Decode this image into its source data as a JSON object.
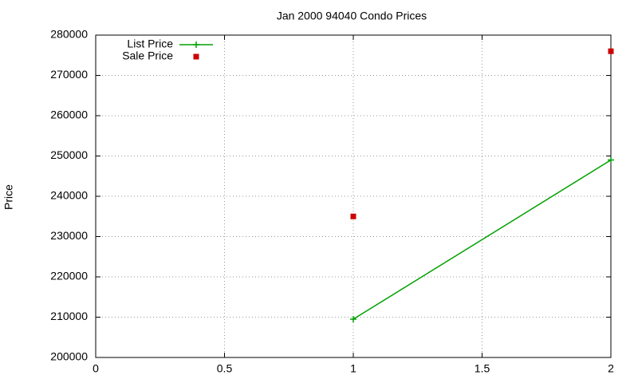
{
  "chart_data": {
    "type": "line",
    "title": "Jan 2000 94040 Condo Prices",
    "y_label": "Price",
    "x": [
      1,
      2
    ],
    "series": [
      {
        "name": "List Price",
        "color": "#00a000",
        "mode": "lines+points",
        "values": [
          209500,
          249000
        ]
      },
      {
        "name": "Sale Price",
        "color": "#cc0000",
        "mode": "points",
        "values": [
          235000,
          276000
        ]
      }
    ],
    "xlim": [
      0,
      2
    ],
    "xticks": [
      0,
      0.5,
      1,
      1.5,
      2
    ],
    "ylim": [
      200000,
      280000
    ],
    "yticks": [
      200000,
      210000,
      220000,
      230000,
      240000,
      250000,
      260000,
      270000,
      280000
    ],
    "grid": true,
    "legend": "top-left"
  }
}
